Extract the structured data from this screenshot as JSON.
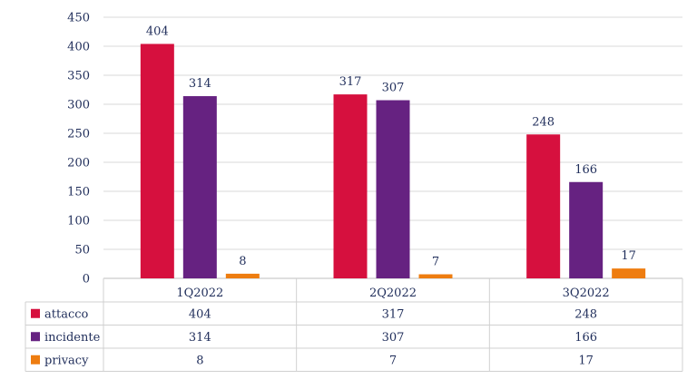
{
  "chart_data": {
    "type": "bar",
    "categories": [
      "1Q2022",
      "2Q2022",
      "3Q2022"
    ],
    "series": [
      {
        "name": "attacco",
        "values": [
          404,
          317,
          248
        ],
        "color": "#d6103e"
      },
      {
        "name": "incidente",
        "values": [
          314,
          307,
          166
        ],
        "color": "#662281"
      },
      {
        "name": "privacy",
        "values": [
          8,
          7,
          17
        ],
        "color": "#ee7d10"
      }
    ],
    "title": "",
    "xlabel": "",
    "ylabel": "",
    "ylim": [
      0,
      450
    ],
    "yticks": [
      0,
      50,
      100,
      150,
      200,
      250,
      300,
      350,
      400,
      450
    ],
    "grid": true,
    "data_labels": true,
    "legend": "data-table-below"
  }
}
